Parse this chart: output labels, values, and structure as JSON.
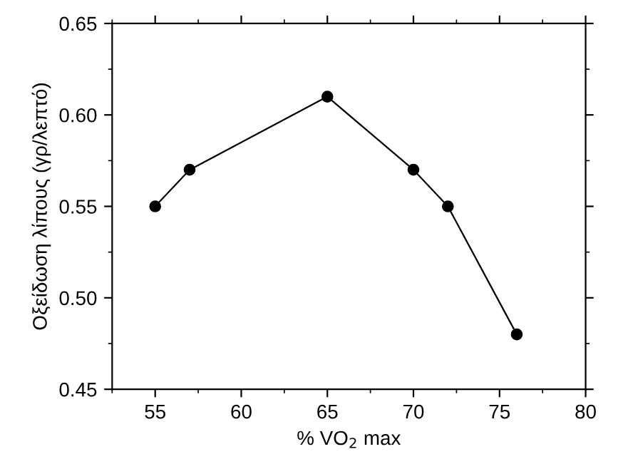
{
  "chart_data": {
    "type": "line",
    "xlabel": "% VO$_{2}$ max",
    "ylabel": "Οξείδωση λίπους (γρ/λεπτό)",
    "x": [
      55,
      57,
      65,
      70,
      72,
      76
    ],
    "series": [
      {
        "color": "#000000",
        "values": [
          0.55,
          0.57,
          0.61,
          0.57,
          0.55,
          0.48
        ]
      }
    ],
    "xlim": [
      52.5,
      80
    ],
    "xticks": [
      55,
      60,
      65,
      70,
      75,
      80
    ],
    "ylim": [
      0.45,
      0.65
    ],
    "yticks": [
      {
        "value": 0.45,
        "label": "0.45"
      },
      {
        "value": 0.5,
        "label": "0.50"
      },
      {
        "value": 0.55,
        "label": "0.55"
      },
      {
        "value": 0.6,
        "label": "0.60"
      },
      {
        "value": 0.65,
        "label": "0.65"
      }
    ],
    "marker": "circle",
    "line_style": "solid",
    "grid": false,
    "legend": false
  }
}
